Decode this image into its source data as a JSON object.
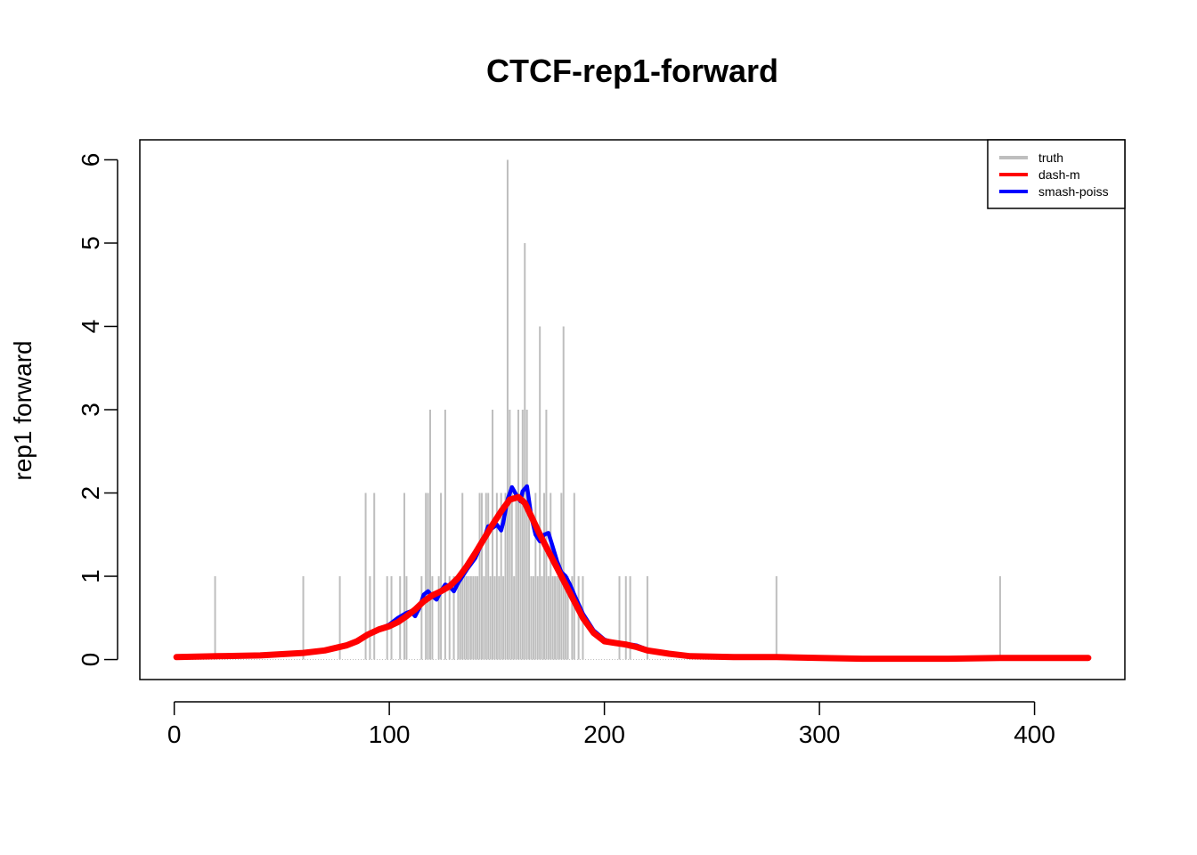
{
  "chart_data": {
    "type": "line",
    "title": "CTCF-rep1-forward",
    "xlabel": "",
    "ylabel": "rep1 forward",
    "xlim": [
      -16,
      442
    ],
    "ylim": [
      -0.24,
      6.24
    ],
    "xticks": [
      0,
      100,
      200,
      300,
      400
    ],
    "yticks": [
      0,
      1,
      2,
      3,
      4,
      5,
      6
    ],
    "legend_position": "top-right",
    "legend": [
      {
        "label": "truth",
        "color": "#bebebe"
      },
      {
        "label": "dash-m",
        "color": "#ff0000"
      },
      {
        "label": "smash-poiss",
        "color": "#0000ff"
      }
    ],
    "truth_spikes": [
      {
        "x": 19,
        "y": 1
      },
      {
        "x": 60,
        "y": 1
      },
      {
        "x": 77,
        "y": 1
      },
      {
        "x": 89,
        "y": 2
      },
      {
        "x": 91,
        "y": 1
      },
      {
        "x": 93,
        "y": 2
      },
      {
        "x": 99,
        "y": 1
      },
      {
        "x": 101,
        "y": 1
      },
      {
        "x": 105,
        "y": 1
      },
      {
        "x": 107,
        "y": 2
      },
      {
        "x": 108,
        "y": 1
      },
      {
        "x": 115,
        "y": 1
      },
      {
        "x": 117,
        "y": 2
      },
      {
        "x": 118,
        "y": 2
      },
      {
        "x": 119,
        "y": 3
      },
      {
        "x": 120,
        "y": 1
      },
      {
        "x": 123,
        "y": 1
      },
      {
        "x": 124,
        "y": 2
      },
      {
        "x": 126,
        "y": 3
      },
      {
        "x": 128,
        "y": 1
      },
      {
        "x": 130,
        "y": 1
      },
      {
        "x": 132,
        "y": 1
      },
      {
        "x": 133,
        "y": 1
      },
      {
        "x": 134,
        "y": 2
      },
      {
        "x": 135,
        "y": 1
      },
      {
        "x": 136,
        "y": 1
      },
      {
        "x": 137,
        "y": 1
      },
      {
        "x": 138,
        "y": 1
      },
      {
        "x": 139,
        "y": 1
      },
      {
        "x": 140,
        "y": 1
      },
      {
        "x": 141,
        "y": 1
      },
      {
        "x": 142,
        "y": 2
      },
      {
        "x": 143,
        "y": 2
      },
      {
        "x": 144,
        "y": 1
      },
      {
        "x": 145,
        "y": 2
      },
      {
        "x": 146,
        "y": 2
      },
      {
        "x": 147,
        "y": 1
      },
      {
        "x": 148,
        "y": 3
      },
      {
        "x": 149,
        "y": 1
      },
      {
        "x": 150,
        "y": 2
      },
      {
        "x": 151,
        "y": 1
      },
      {
        "x": 152,
        "y": 2
      },
      {
        "x": 153,
        "y": 1
      },
      {
        "x": 154,
        "y": 2
      },
      {
        "x": 155,
        "y": 6
      },
      {
        "x": 156,
        "y": 3
      },
      {
        "x": 157,
        "y": 2
      },
      {
        "x": 158,
        "y": 1
      },
      {
        "x": 159,
        "y": 2
      },
      {
        "x": 160,
        "y": 3
      },
      {
        "x": 161,
        "y": 2
      },
      {
        "x": 162,
        "y": 3
      },
      {
        "x": 163,
        "y": 5
      },
      {
        "x": 164,
        "y": 3
      },
      {
        "x": 165,
        "y": 2
      },
      {
        "x": 166,
        "y": 1
      },
      {
        "x": 167,
        "y": 1
      },
      {
        "x": 168,
        "y": 2
      },
      {
        "x": 169,
        "y": 1
      },
      {
        "x": 170,
        "y": 4
      },
      {
        "x": 171,
        "y": 1
      },
      {
        "x": 172,
        "y": 2
      },
      {
        "x": 173,
        "y": 3
      },
      {
        "x": 174,
        "y": 1
      },
      {
        "x": 175,
        "y": 2
      },
      {
        "x": 176,
        "y": 1
      },
      {
        "x": 177,
        "y": 1
      },
      {
        "x": 178,
        "y": 1
      },
      {
        "x": 179,
        "y": 1
      },
      {
        "x": 180,
        "y": 2
      },
      {
        "x": 181,
        "y": 4
      },
      {
        "x": 182,
        "y": 1
      },
      {
        "x": 183,
        "y": 1
      },
      {
        "x": 185,
        "y": 1
      },
      {
        "x": 186,
        "y": 2
      },
      {
        "x": 188,
        "y": 1
      },
      {
        "x": 190,
        "y": 1
      },
      {
        "x": 207,
        "y": 1
      },
      {
        "x": 210,
        "y": 1
      },
      {
        "x": 212,
        "y": 1
      },
      {
        "x": 220,
        "y": 1
      },
      {
        "x": 280,
        "y": 1
      },
      {
        "x": 384,
        "y": 1
      }
    ],
    "series": [
      {
        "name": "smash-poiss",
        "color": "#0000ff",
        "x": [
          1,
          20,
          40,
          60,
          70,
          80,
          85,
          90,
          95,
          100,
          104,
          108,
          110,
          112,
          114,
          116,
          118,
          120,
          122,
          124,
          126,
          128,
          130,
          132,
          136,
          140,
          144,
          146,
          148,
          150,
          152,
          153,
          155,
          157,
          159,
          161,
          162,
          164,
          166,
          168,
          170,
          172,
          174,
          176,
          178,
          180,
          182,
          184,
          186,
          190,
          195,
          200,
          205,
          210,
          215,
          220,
          230,
          240,
          260,
          280,
          300,
          320,
          340,
          360,
          384,
          400,
          425
        ],
        "y": [
          0.03,
          0.04,
          0.05,
          0.08,
          0.11,
          0.17,
          0.22,
          0.3,
          0.36,
          0.42,
          0.5,
          0.56,
          0.58,
          0.52,
          0.62,
          0.78,
          0.82,
          0.76,
          0.72,
          0.82,
          0.9,
          0.88,
          0.82,
          0.92,
          1.08,
          1.22,
          1.45,
          1.6,
          1.58,
          1.62,
          1.55,
          1.65,
          1.92,
          2.07,
          1.98,
          1.9,
          2.02,
          2.08,
          1.72,
          1.5,
          1.42,
          1.5,
          1.52,
          1.35,
          1.18,
          1.05,
          1.0,
          0.9,
          0.78,
          0.55,
          0.35,
          0.24,
          0.2,
          0.19,
          0.17,
          0.12,
          0.07,
          0.04,
          0.03,
          0.03,
          0.02,
          0.01,
          0.01,
          0.01,
          0.02,
          0.02,
          0.02
        ]
      },
      {
        "name": "dash-m",
        "color": "#ff0000",
        "x": [
          1,
          20,
          40,
          60,
          70,
          80,
          85,
          90,
          95,
          100,
          104,
          108,
          112,
          116,
          120,
          124,
          128,
          132,
          136,
          140,
          144,
          148,
          152,
          156,
          160,
          163,
          166,
          170,
          174,
          178,
          182,
          186,
          190,
          195,
          200,
          205,
          210,
          215,
          220,
          230,
          240,
          260,
          280,
          300,
          320,
          340,
          360,
          384,
          400,
          425
        ],
        "y": [
          0.03,
          0.04,
          0.05,
          0.08,
          0.11,
          0.17,
          0.22,
          0.3,
          0.36,
          0.4,
          0.45,
          0.52,
          0.6,
          0.7,
          0.77,
          0.82,
          0.88,
          0.98,
          1.12,
          1.28,
          1.45,
          1.62,
          1.78,
          1.92,
          1.95,
          1.88,
          1.72,
          1.5,
          1.3,
          1.1,
          0.9,
          0.7,
          0.5,
          0.32,
          0.22,
          0.2,
          0.18,
          0.15,
          0.11,
          0.07,
          0.04,
          0.03,
          0.03,
          0.02,
          0.01,
          0.01,
          0.01,
          0.02,
          0.02,
          0.02
        ]
      }
    ]
  }
}
